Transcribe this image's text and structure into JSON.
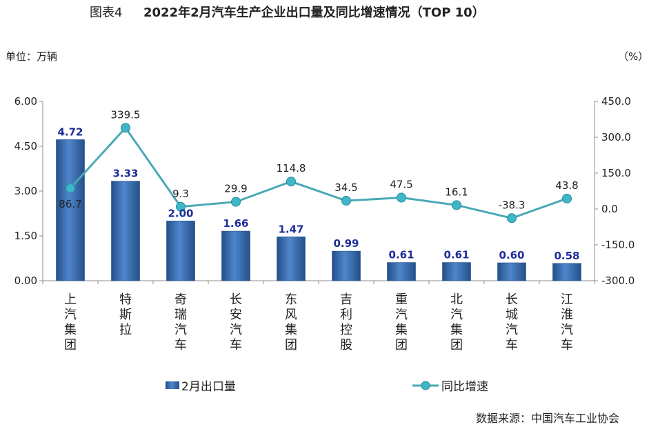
{
  "title": {
    "label": "图表4",
    "main": "2022年2月汽车生产企业出口量及同比增速情况（TOP 10）"
  },
  "units": {
    "left": "单位：万辆",
    "right": "（%）"
  },
  "source": "数据来源：中国汽车工业协会",
  "colors": {
    "bar": "#3e72b6",
    "bar_dark": "#244f88",
    "line": "#4aa8b6",
    "marker": "#3fb6c9",
    "bar_label": "#1f2d9a",
    "axis": "#8c8c8c"
  },
  "chart_data": {
    "type": "bar",
    "categories": [
      "上汽集团",
      "特斯拉",
      "奇瑞汽车",
      "长安汽车",
      "东风集团",
      "吉利控股",
      "重汽集团",
      "北汽集团",
      "长城汽车",
      "江淮汽车"
    ],
    "series": [
      {
        "name": "2月出口量",
        "type": "bar",
        "axis": "left",
        "values": [
          4.72,
          3.33,
          2.0,
          1.66,
          1.47,
          0.99,
          0.61,
          0.61,
          0.6,
          0.58
        ],
        "labels": [
          "4.72",
          "3.33",
          "2.00",
          "1.66",
          "1.47",
          "0.99",
          "0.61",
          "0.61",
          "0.60",
          "0.58"
        ]
      },
      {
        "name": "同比增速",
        "type": "line",
        "axis": "right",
        "values": [
          86.7,
          339.5,
          9.3,
          29.9,
          114.8,
          34.5,
          47.5,
          16.1,
          -38.3,
          43.8
        ],
        "labels": [
          "86.7",
          "339.5",
          "9.3",
          "29.9",
          "114.8",
          "34.5",
          "47.5",
          "16.1",
          "-38.3",
          "43.8"
        ]
      }
    ],
    "y_left": {
      "ylim": [
        0,
        6
      ],
      "ticks": [
        "0.00",
        "1.50",
        "3.00",
        "4.50",
        "6.00"
      ]
    },
    "y_right": {
      "ylim": [
        -300,
        450
      ],
      "ticks": [
        "-300.0",
        "-150.0",
        "0.0",
        "150.0",
        "300.0",
        "450.0"
      ]
    },
    "grid": false,
    "legend": "bottom"
  }
}
